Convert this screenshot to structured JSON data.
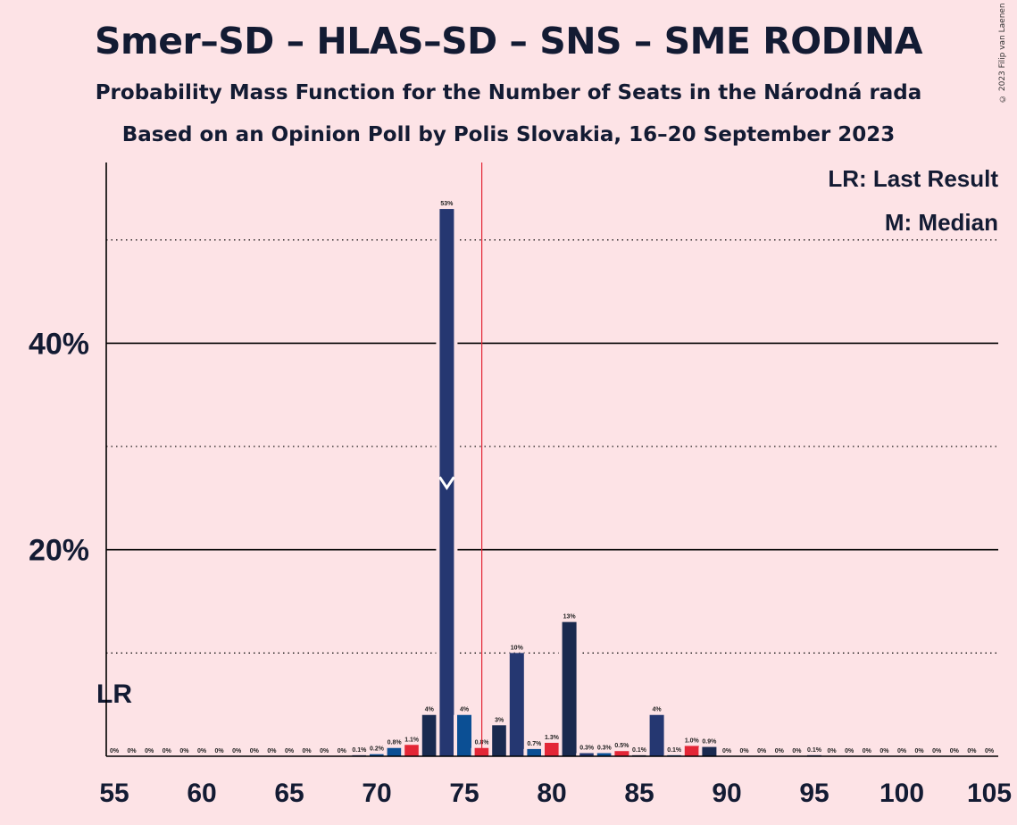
{
  "title": "Smer–SD – HLAS–SD – SNS – SME RODINA",
  "subtitle1": "Probability Mass Function for the Number of Seats in the Národná rada",
  "subtitle2": "Based on an Opinion Poll by Polis Slovakia, 16–20 September 2023",
  "copyright": "© 2023 Filip van Laenen",
  "legend": {
    "lr": "LR: Last Result",
    "m": "M: Median"
  },
  "colors": {
    "background": "#FDE3E6",
    "navy": "#253771",
    "dark_navy": "#1A2A4F",
    "blue": "#0B4F94",
    "red": "#E32636",
    "majority_line": "#E32636"
  },
  "chart_data": {
    "type": "bar",
    "xlim": [
      55,
      105
    ],
    "ylim": [
      0,
      57
    ],
    "x_ticks": [
      "55",
      "60",
      "65",
      "70",
      "75",
      "80",
      "85",
      "90",
      "95",
      "100",
      "105"
    ],
    "x_tick_values": [
      55,
      60,
      65,
      70,
      75,
      80,
      85,
      90,
      95,
      100,
      105
    ],
    "y_ticks": [
      "20%",
      "40%"
    ],
    "y_tick_values": [
      20,
      40
    ],
    "y_gridlines_solid": [
      20,
      40
    ],
    "y_gridlines_dotted": [
      10,
      30,
      50
    ],
    "last_result": {
      "seat": 55,
      "label": "LR"
    },
    "median": {
      "seat": 74,
      "value": 26
    },
    "majority_line": 76,
    "bars": [
      {
        "seat": 55,
        "value": 0,
        "label": "0%",
        "color": "navy"
      },
      {
        "seat": 56,
        "value": 0,
        "label": "0%",
        "color": "navy"
      },
      {
        "seat": 57,
        "value": 0,
        "label": "0%",
        "color": "navy"
      },
      {
        "seat": 58,
        "value": 0,
        "label": "0%",
        "color": "navy"
      },
      {
        "seat": 59,
        "value": 0,
        "label": "0%",
        "color": "navy"
      },
      {
        "seat": 60,
        "value": 0,
        "label": "0%",
        "color": "navy"
      },
      {
        "seat": 61,
        "value": 0,
        "label": "0%",
        "color": "navy"
      },
      {
        "seat": 62,
        "value": 0,
        "label": "0%",
        "color": "navy"
      },
      {
        "seat": 63,
        "value": 0,
        "label": "0%",
        "color": "navy"
      },
      {
        "seat": 64,
        "value": 0,
        "label": "0%",
        "color": "navy"
      },
      {
        "seat": 65,
        "value": 0,
        "label": "0%",
        "color": "navy"
      },
      {
        "seat": 66,
        "value": 0,
        "label": "0%",
        "color": "navy"
      },
      {
        "seat": 67,
        "value": 0,
        "label": "0%",
        "color": "navy"
      },
      {
        "seat": 68,
        "value": 0,
        "label": "0%",
        "color": "navy"
      },
      {
        "seat": 69,
        "value": 0.1,
        "label": "0.1%",
        "color": "navy"
      },
      {
        "seat": 70,
        "value": 0.2,
        "label": "0.2%",
        "color": "blue"
      },
      {
        "seat": 71,
        "value": 0.8,
        "label": "0.8%",
        "color": "blue"
      },
      {
        "seat": 72,
        "value": 1.1,
        "label": "1.1%",
        "color": "red"
      },
      {
        "seat": 73,
        "value": 4,
        "label": "4%",
        "color": "dark_navy"
      },
      {
        "seat": 74,
        "value": 53,
        "label": "53%",
        "color": "navy"
      },
      {
        "seat": 75,
        "value": 4,
        "label": "4%",
        "color": "blue"
      },
      {
        "seat": 76,
        "value": 0.8,
        "label": "0.8%",
        "color": "red"
      },
      {
        "seat": 77,
        "value": 3,
        "label": "3%",
        "color": "dark_navy"
      },
      {
        "seat": 78,
        "value": 10,
        "label": "10%",
        "color": "navy"
      },
      {
        "seat": 79,
        "value": 0.7,
        "label": "0.7%",
        "color": "blue"
      },
      {
        "seat": 80,
        "value": 1.3,
        "label": "1.3%",
        "color": "red"
      },
      {
        "seat": 81,
        "value": 13,
        "label": "13%",
        "color": "dark_navy"
      },
      {
        "seat": 82,
        "value": 0.3,
        "label": "0.3%",
        "color": "navy"
      },
      {
        "seat": 83,
        "value": 0.3,
        "label": "0.3%",
        "color": "blue"
      },
      {
        "seat": 84,
        "value": 0.5,
        "label": "0.5%",
        "color": "red"
      },
      {
        "seat": 85,
        "value": 0.1,
        "label": "0.1%",
        "color": "dark_navy"
      },
      {
        "seat": 86,
        "value": 4,
        "label": "4%",
        "color": "navy"
      },
      {
        "seat": 87,
        "value": 0.1,
        "label": "0.1%",
        "color": "blue"
      },
      {
        "seat": 88,
        "value": 1.0,
        "label": "1.0%",
        "color": "red"
      },
      {
        "seat": 89,
        "value": 0.9,
        "label": "0.9%",
        "color": "dark_navy"
      },
      {
        "seat": 90,
        "value": 0,
        "label": "0%",
        "color": "navy"
      },
      {
        "seat": 91,
        "value": 0,
        "label": "0%",
        "color": "navy"
      },
      {
        "seat": 92,
        "value": 0,
        "label": "0%",
        "color": "navy"
      },
      {
        "seat": 93,
        "value": 0,
        "label": "0%",
        "color": "navy"
      },
      {
        "seat": 94,
        "value": 0,
        "label": "0%",
        "color": "navy"
      },
      {
        "seat": 95,
        "value": 0.1,
        "label": "0.1%",
        "color": "navy"
      },
      {
        "seat": 96,
        "value": 0,
        "label": "0%",
        "color": "navy"
      },
      {
        "seat": 97,
        "value": 0,
        "label": "0%",
        "color": "navy"
      },
      {
        "seat": 98,
        "value": 0,
        "label": "0%",
        "color": "navy"
      },
      {
        "seat": 99,
        "value": 0,
        "label": "0%",
        "color": "navy"
      },
      {
        "seat": 100,
        "value": 0,
        "label": "0%",
        "color": "navy"
      },
      {
        "seat": 101,
        "value": 0,
        "label": "0%",
        "color": "navy"
      },
      {
        "seat": 102,
        "value": 0,
        "label": "0%",
        "color": "navy"
      },
      {
        "seat": 103,
        "value": 0,
        "label": "0%",
        "color": "navy"
      },
      {
        "seat": 104,
        "value": 0,
        "label": "0%",
        "color": "navy"
      },
      {
        "seat": 105,
        "value": 0,
        "label": "0%",
        "color": "navy"
      }
    ]
  }
}
